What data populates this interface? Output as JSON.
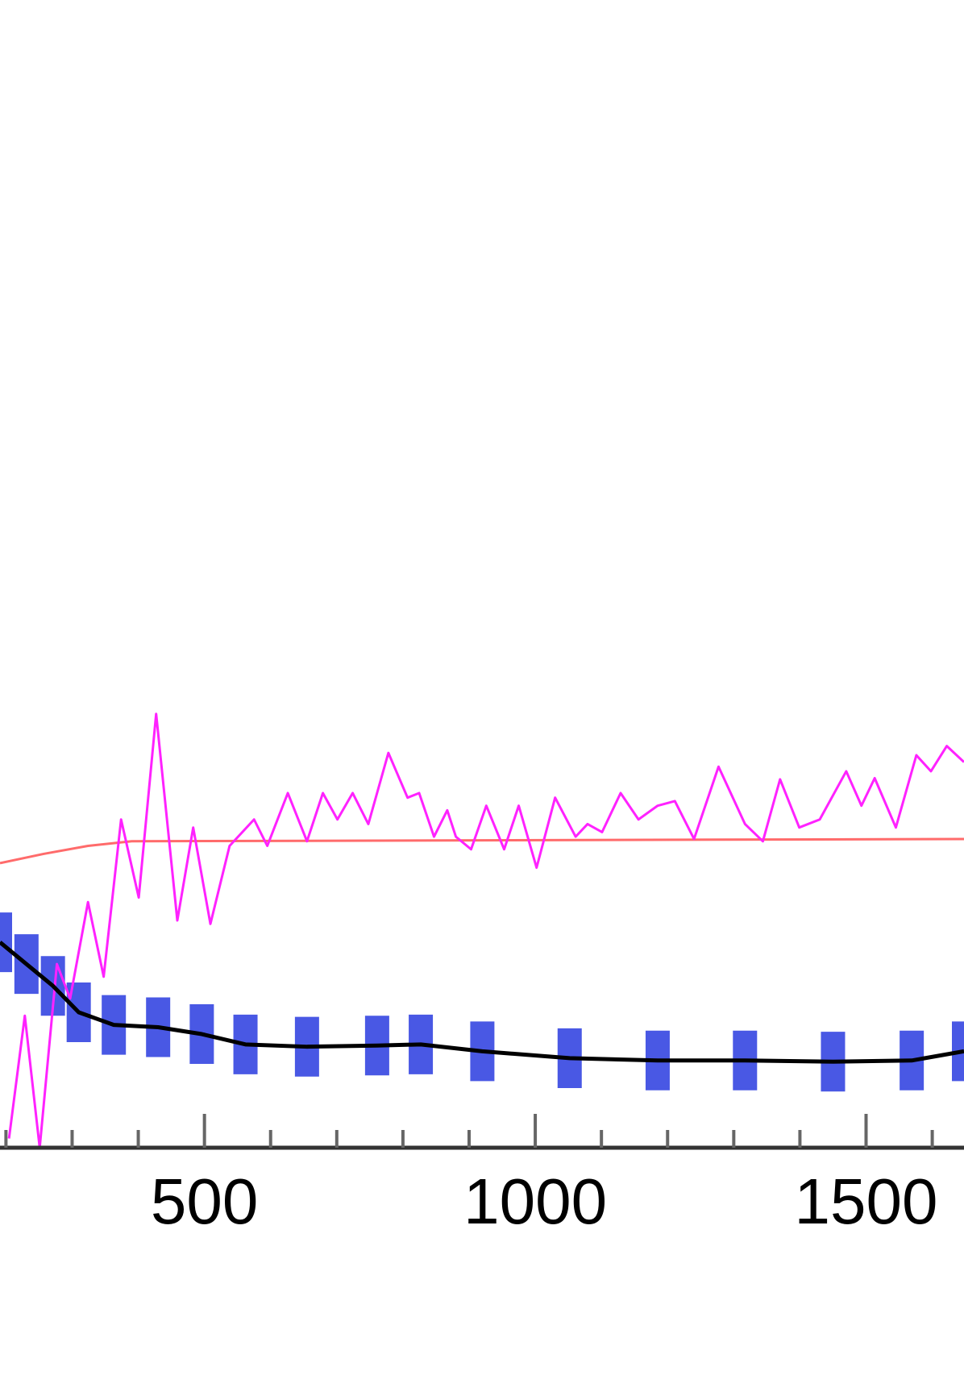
{
  "chart_data": {
    "type": "line",
    "xlim": [
      191,
      1648
    ],
    "ylim": [
      0,
      100
    ],
    "xticks": [
      500,
      1000,
      1500
    ],
    "xminorticks": [
      200,
      300,
      400,
      600,
      700,
      800,
      900,
      1100,
      1200,
      1300,
      1400,
      1600
    ],
    "series": [
      {
        "color": "#ff6b6b",
        "x": [
          191,
          257,
          324,
          390,
          1648
        ],
        "values": [
          24.8,
          25.6,
          26.3,
          26.7,
          26.9
        ]
      },
      {
        "color": "#ff22ff",
        "x": [
          204.6,
          228.5,
          251,
          277,
          297,
          324,
          347.7,
          374,
          400.7,
          427,
          459,
          483,
          509,
          538,
          575,
          595,
          626,
          655,
          679,
          701,
          724,
          747.7,
          778,
          807,
          824.5,
          847,
          867,
          880,
          903,
          926,
          953,
          975,
          1002,
          1030,
          1061,
          1079,
          1101,
          1129,
          1156,
          1185,
          1211,
          1240,
          1277,
          1317,
          1344,
          1370,
          1399,
          1430,
          1470,
          1493,
          1513,
          1545,
          1576,
          1598,
          1622,
          1648
        ],
        "values": [
          0.8,
          11.5,
          0,
          16,
          13,
          21.4,
          14.9,
          28.6,
          21.8,
          37.8,
          19.8,
          27.9,
          19.5,
          26.3,
          28.6,
          26.3,
          30.9,
          26.7,
          30.9,
          28.6,
          30.9,
          28.2,
          34.4,
          30.5,
          30.9,
          27.1,
          29.4,
          27.1,
          26,
          29.8,
          26,
          29.8,
          24.4,
          30.5,
          27.1,
          28.2,
          27.5,
          30.9,
          28.6,
          29.8,
          30.2,
          26.9,
          33.2,
          28.2,
          26.7,
          32.1,
          27.9,
          28.6,
          32.8,
          29.8,
          32.2,
          27.9,
          34.2,
          32.8,
          35,
          33.6
        ]
      },
      {
        "color": "#000000",
        "error_color": "#2a3be0",
        "x": [
          191,
          231,
          271,
          310,
          363,
          430,
          496,
          562,
          655,
          761,
          827,
          920,
          1052,
          1185,
          1317,
          1450,
          1569,
          1648
        ],
        "values": [
          17.9,
          16,
          14.1,
          11.8,
          10.7,
          10.5,
          9.9,
          9,
          8.8,
          8.9,
          9,
          8.4,
          7.8,
          7.6,
          7.6,
          7.5,
          7.6,
          8.4
        ],
        "error": [
          2.6,
          2.6,
          2.6,
          2.6,
          2.6,
          2.6,
          2.6,
          2.6,
          2.6,
          2.6,
          2.6,
          2.6,
          2.6,
          2.6,
          2.6,
          2.6,
          2.6,
          2.6
        ]
      }
    ]
  }
}
